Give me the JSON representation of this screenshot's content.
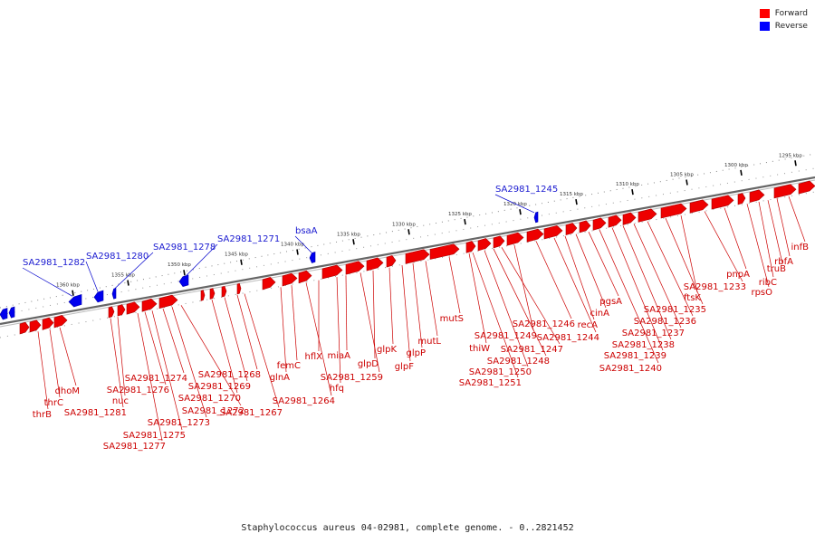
{
  "legend": [
    {
      "label": "Forward",
      "color": "#ff0000"
    },
    {
      "label": "Reverse",
      "color": "#0000ff"
    }
  ],
  "caption": "Staphylococcus aureus 04-02981, complete genome. - 0..2821452",
  "scale_ticks": [
    "1295 kbp",
    "1300 kbp",
    "1305 kbp",
    "1310 kbp",
    "1315 kbp",
    "1320 kbp",
    "1325 kbp",
    "1330 kbp",
    "1335 kbp",
    "1340 kbp",
    "1345 kbp",
    "1350 kbp",
    "1355 kbp",
    "1360 kbp"
  ],
  "colors": {
    "forward": "#ee0000",
    "reverse": "#0000ee",
    "backbone": "#777777"
  },
  "labels_red": [
    "infB",
    "rbfA",
    "truB",
    "ribC",
    "rpsO",
    "pnpA",
    "SA2981_1233",
    "ftsK",
    "SA2981_1235",
    "SA2981_1236",
    "SA2981_1237",
    "SA2981_1238",
    "SA2981_1239",
    "SA2981_1240",
    "pgsA",
    "cinA",
    "recA",
    "SA2981_1244",
    "SA2981_1246",
    "SA2981_1249",
    "SA2981_1247",
    "SA2981_1248",
    "SA2981_1250",
    "SA2981_1251",
    "thiW",
    "mutS",
    "mutL",
    "glpP",
    "glpF",
    "glpK",
    "glpD",
    "SA2981_1259",
    "miaA",
    "hfq",
    "hflX",
    "femC",
    "glnA",
    "SA2981_1264",
    "SA2981_1267",
    "SA2981_1268",
    "SA2981_1269",
    "SA2981_1270",
    "SA2981_1272",
    "SA2981_1273",
    "SA2981_1274",
    "SA2981_1275",
    "SA2981_1276",
    "SA2981_1277",
    "nuc",
    "SA2981_1281",
    "dhoM",
    "thrC",
    "thrB"
  ],
  "labels_blue": [
    "SA2981_1245",
    "bsaA",
    "SA2981_1271",
    "SA2981_1278",
    "SA2981_1280",
    "SA2981_1282"
  ]
}
